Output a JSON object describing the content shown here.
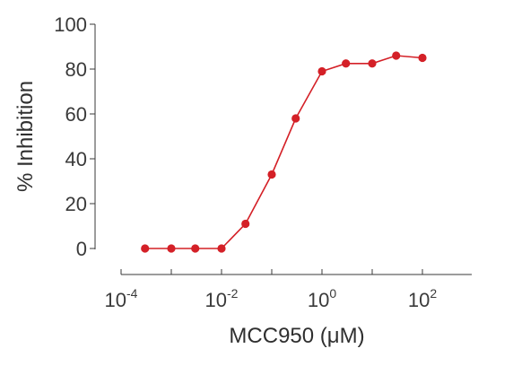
{
  "chart_data": {
    "type": "line",
    "title": "",
    "xlabel": "MCC950 (μM)",
    "ylabel": "% Inhibition",
    "xscale": "log",
    "xlim": [
      0.0001,
      1000
    ],
    "ylim": [
      0,
      100
    ],
    "xticks": [
      {
        "value": 0.0001,
        "base": "10",
        "exp": "-4"
      },
      {
        "value": 0.01,
        "base": "10",
        "exp": "-2"
      },
      {
        "value": 1,
        "base": "10",
        "exp": "0"
      },
      {
        "value": 100,
        "base": "10",
        "exp": "2"
      }
    ],
    "yticks": [
      0,
      20,
      40,
      60,
      80,
      100
    ],
    "grid": false,
    "color": "#d42027",
    "series": [
      {
        "name": "",
        "x": [
          0.0003,
          0.001,
          0.003,
          0.01,
          0.03,
          0.1,
          0.3,
          1,
          3,
          10,
          30,
          100
        ],
        "y": [
          0,
          0,
          0,
          0,
          11,
          33,
          58,
          79,
          82.5,
          82.5,
          86,
          85
        ]
      }
    ]
  }
}
